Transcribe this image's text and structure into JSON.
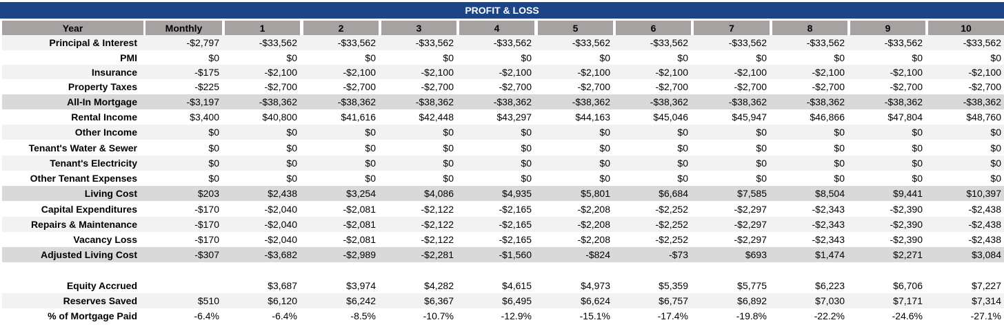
{
  "title": "PROFIT & LOSS",
  "header": [
    "Year",
    "Monthly",
    "1",
    "2",
    "3",
    "4",
    "5",
    "6",
    "7",
    "8",
    "9",
    "10"
  ],
  "rows": [
    {
      "label": "Principal & Interest",
      "shade": "light",
      "values": [
        "-$2,797",
        "-$33,562",
        "-$33,562",
        "-$33,562",
        "-$33,562",
        "-$33,562",
        "-$33,562",
        "-$33,562",
        "-$33,562",
        "-$33,562",
        "-$33,562"
      ]
    },
    {
      "label": "PMI",
      "shade": "white",
      "values": [
        "$0",
        "$0",
        "$0",
        "$0",
        "$0",
        "$0",
        "$0",
        "$0",
        "$0",
        "$0",
        "$0"
      ]
    },
    {
      "label": "Insurance",
      "shade": "light",
      "values": [
        "-$175",
        "-$2,100",
        "-$2,100",
        "-$2,100",
        "-$2,100",
        "-$2,100",
        "-$2,100",
        "-$2,100",
        "-$2,100",
        "-$2,100",
        "-$2,100"
      ]
    },
    {
      "label": "Property Taxes",
      "shade": "white",
      "values": [
        "-$225",
        "-$2,700",
        "-$2,700",
        "-$2,700",
        "-$2,700",
        "-$2,700",
        "-$2,700",
        "-$2,700",
        "-$2,700",
        "-$2,700",
        "-$2,700"
      ]
    },
    {
      "label": "All-In Mortgage",
      "shade": "dark",
      "values": [
        "-$3,197",
        "-$38,362",
        "-$38,362",
        "-$38,362",
        "-$38,362",
        "-$38,362",
        "-$38,362",
        "-$38,362",
        "-$38,362",
        "-$38,362",
        "-$38,362"
      ]
    },
    {
      "label": "Rental Income",
      "shade": "white",
      "values": [
        "$3,400",
        "$40,800",
        "$41,616",
        "$42,448",
        "$43,297",
        "$44,163",
        "$45,046",
        "$45,947",
        "$46,866",
        "$47,804",
        "$48,760"
      ]
    },
    {
      "label": "Other Income",
      "shade": "light",
      "values": [
        "$0",
        "$0",
        "$0",
        "$0",
        "$0",
        "$0",
        "$0",
        "$0",
        "$0",
        "$0",
        "$0"
      ]
    },
    {
      "label": "Tenant's Water & Sewer",
      "shade": "white",
      "values": [
        "$0",
        "$0",
        "$0",
        "$0",
        "$0",
        "$0",
        "$0",
        "$0",
        "$0",
        "$0",
        "$0"
      ]
    },
    {
      "label": "Tenant's Electricity",
      "shade": "light",
      "values": [
        "$0",
        "$0",
        "$0",
        "$0",
        "$0",
        "$0",
        "$0",
        "$0",
        "$0",
        "$0",
        "$0"
      ]
    },
    {
      "label": "Other Tenant Expenses",
      "shade": "white",
      "values": [
        "$0",
        "$0",
        "$0",
        "$0",
        "$0",
        "$0",
        "$0",
        "$0",
        "$0",
        "$0",
        "$0"
      ]
    },
    {
      "label": "Living Cost",
      "shade": "dark",
      "values": [
        "$203",
        "$2,438",
        "$3,254",
        "$4,086",
        "$4,935",
        "$5,801",
        "$6,684",
        "$7,585",
        "$8,504",
        "$9,441",
        "$10,397"
      ]
    },
    {
      "label": "Capital Expenditures",
      "shade": "white",
      "values": [
        "-$170",
        "-$2,040",
        "-$2,081",
        "-$2,122",
        "-$2,165",
        "-$2,208",
        "-$2,252",
        "-$2,297",
        "-$2,343",
        "-$2,390",
        "-$2,438"
      ]
    },
    {
      "label": "Repairs & Maintenance",
      "shade": "light",
      "values": [
        "-$170",
        "-$2,040",
        "-$2,081",
        "-$2,122",
        "-$2,165",
        "-$2,208",
        "-$2,252",
        "-$2,297",
        "-$2,343",
        "-$2,390",
        "-$2,438"
      ]
    },
    {
      "label": "Vacancy Loss",
      "shade": "white",
      "values": [
        "-$170",
        "-$2,040",
        "-$2,081",
        "-$2,122",
        "-$2,165",
        "-$2,208",
        "-$2,252",
        "-$2,297",
        "-$2,343",
        "-$2,390",
        "-$2,438"
      ]
    },
    {
      "label": "Adjusted Living Cost",
      "shade": "dark",
      "values": [
        "-$307",
        "-$3,682",
        "-$2,989",
        "-$2,281",
        "-$1,560",
        "-$824",
        "-$73",
        "$693",
        "$1,474",
        "$2,271",
        "$3,084"
      ]
    },
    {
      "label": "Equity Accrued",
      "shade": "white",
      "values": [
        "",
        "$3,687",
        "$3,974",
        "$4,282",
        "$4,615",
        "$4,973",
        "$5,359",
        "$5,775",
        "$6,223",
        "$6,706",
        "$7,227"
      ]
    },
    {
      "label": "Reserves Saved",
      "shade": "light",
      "values": [
        "$510",
        "$6,120",
        "$6,242",
        "$6,367",
        "$6,495",
        "$6,624",
        "$6,757",
        "$6,892",
        "$7,030",
        "$7,171",
        "$7,314"
      ]
    },
    {
      "label": "% of Mortgage Paid",
      "shade": "white",
      "values": [
        "-6.4%",
        "-6.4%",
        "-8.5%",
        "-10.7%",
        "-12.9%",
        "-15.1%",
        "-17.4%",
        "-19.8%",
        "-22.2%",
        "-24.6%",
        "-27.1%"
      ]
    }
  ],
  "colors": {
    "title_bg": "#1d4487",
    "header_bg": "#a7a2a2",
    "shade_light": "#f2f2f2",
    "shade_dark": "#d9d9d9",
    "shade_white": "#ffffff"
  }
}
